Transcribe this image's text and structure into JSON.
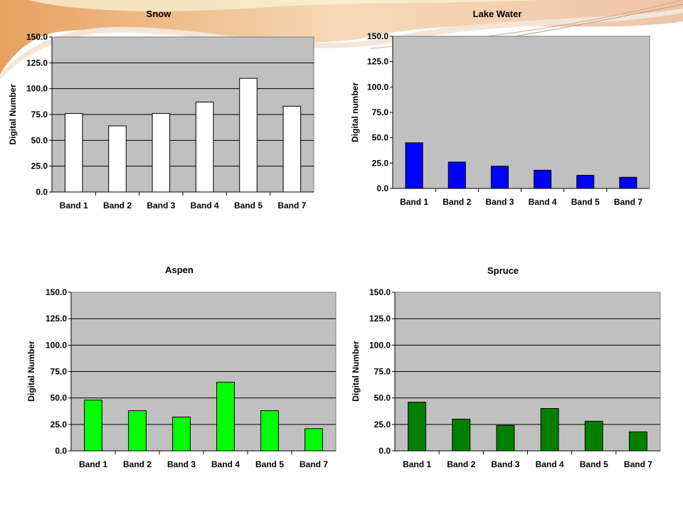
{
  "colors": {
    "plot_background": "#c0c0c0",
    "snow": "#ffffff",
    "lake_water": "#0000ff",
    "aspen": "#00ff00",
    "spruce": "#008000",
    "bar_border": "#000000"
  },
  "chart_data": [
    {
      "id": "snow",
      "type": "bar",
      "title": "Snow",
      "xlabel": "",
      "ylabel": "Digital Number",
      "categories": [
        "Band 1",
        "Band 2",
        "Band 3",
        "Band 4",
        "Band 5",
        "Band 7"
      ],
      "values": [
        76,
        64,
        76,
        87,
        110,
        83
      ],
      "ylim": [
        0,
        150
      ],
      "yticks": [
        "0.0",
        "25.0",
        "50.0",
        "75.0",
        "100.0",
        "125.0",
        "150.0"
      ],
      "grid": true,
      "color": "#ffffff"
    },
    {
      "id": "lake-water",
      "type": "bar",
      "title": "Lake Water",
      "xlabel": "",
      "ylabel": "Digital number",
      "categories": [
        "Band 1",
        "Band 2",
        "Band 3",
        "Band 4",
        "Band 5",
        "Band 7"
      ],
      "values": [
        45,
        26,
        22,
        18,
        13,
        11
      ],
      "ylim": [
        0,
        150
      ],
      "yticks": [
        "0.0",
        "25.0",
        "50.0",
        "75.0",
        "100.0",
        "125.0",
        "150.0"
      ],
      "grid": false,
      "color": "#0000ff"
    },
    {
      "id": "aspen",
      "type": "bar",
      "title": "Aspen",
      "xlabel": "",
      "ylabel": "Digital Number",
      "categories": [
        "Band 1",
        "Band 2",
        "Band 3",
        "Band 4",
        "Band 5",
        "Band 7"
      ],
      "values": [
        48,
        38,
        32,
        65,
        38,
        21
      ],
      "ylim": [
        0,
        150
      ],
      "yticks": [
        "0.0",
        "25.0",
        "50.0",
        "75.0",
        "100.0",
        "125.0",
        "150.0"
      ],
      "grid": true,
      "color": "#00ff00"
    },
    {
      "id": "spruce",
      "type": "bar",
      "title": "Spruce",
      "xlabel": "",
      "ylabel": "Digital Number",
      "categories": [
        "Band 1",
        "Band 2",
        "Band 3",
        "Band 4",
        "Band 5",
        "Band 7"
      ],
      "values": [
        46,
        30,
        24,
        40,
        28,
        18
      ],
      "ylim": [
        0,
        150
      ],
      "yticks": [
        "0.0",
        "25.0",
        "50.0",
        "75.0",
        "100.0",
        "125.0",
        "150.0"
      ],
      "grid": true,
      "color": "#008000"
    }
  ]
}
